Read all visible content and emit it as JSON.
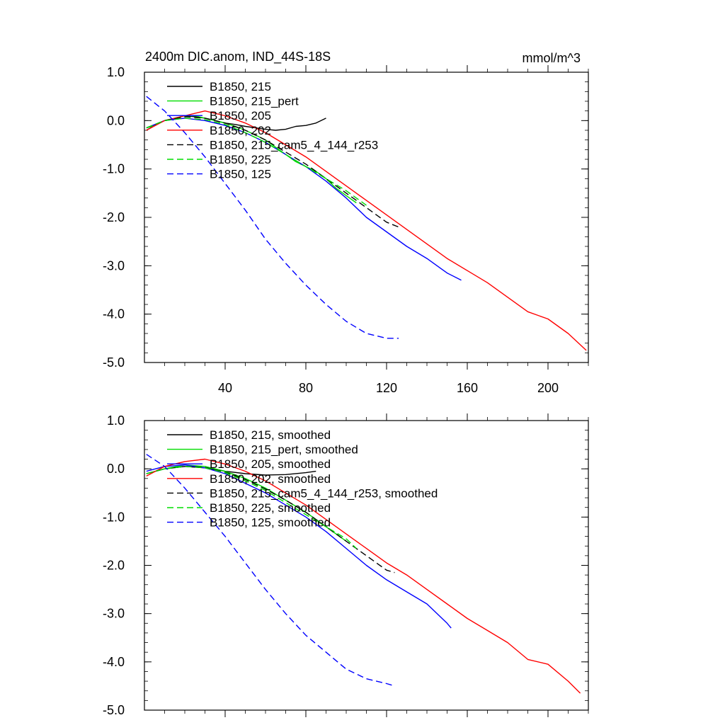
{
  "chart_data": [
    {
      "type": "line",
      "title": "2400m DIC.anom, IND_44S-18S",
      "units": "mmol/m^3",
      "xlim": [
        0,
        220
      ],
      "ylim": [
        -5.0,
        1.0
      ],
      "x_ticks": [
        40,
        80,
        120,
        160,
        200
      ],
      "x_tick_labels": [
        "40",
        "80",
        "120",
        "160",
        "200"
      ],
      "y_ticks": [
        1.0,
        0.0,
        -1.0,
        -2.0,
        -3.0,
        -4.0,
        -5.0
      ],
      "y_tick_labels": [
        "1.0",
        "0.0",
        "-1.0",
        "-2.0",
        "-3.0",
        "-4.0",
        "-5.0"
      ],
      "legend_position": "top-left",
      "series": [
        {
          "name": "B1850, 215",
          "color": "#000000",
          "dash": "solid",
          "x": [
            1,
            5,
            10,
            15,
            20,
            25,
            30,
            35,
            40,
            45,
            50,
            55,
            60,
            65,
            70,
            75,
            80,
            85,
            90
          ],
          "y": [
            -0.2,
            -0.1,
            0.0,
            0.05,
            0.1,
            0.08,
            0.05,
            0.0,
            -0.05,
            -0.08,
            -0.12,
            -0.15,
            -0.18,
            -0.2,
            -0.18,
            -0.12,
            -0.1,
            -0.05,
            0.05
          ]
        },
        {
          "name": "B1850, 215_pert",
          "color": "#00dd00",
          "dash": "solid",
          "x": [
            1,
            5,
            10,
            15,
            20,
            25,
            30,
            35,
            40,
            45,
            50,
            55,
            60,
            65,
            70,
            75,
            80,
            85,
            90,
            95,
            100,
            105
          ],
          "y": [
            -0.15,
            -0.1,
            0.0,
            0.05,
            0.1,
            0.1,
            0.05,
            0.0,
            -0.05,
            -0.12,
            -0.2,
            -0.3,
            -0.4,
            -0.55,
            -0.7,
            -0.85,
            -0.95,
            -1.05,
            -1.2,
            -1.4,
            -1.55,
            -1.7
          ]
        },
        {
          "name": "B1850, 205",
          "color": "#0000ff",
          "dash": "solid",
          "x": [
            1,
            10,
            20,
            30,
            40,
            50,
            60,
            70,
            80,
            90,
            100,
            110,
            120,
            130,
            140,
            150,
            157
          ],
          "y": [
            -0.15,
            0.0,
            0.05,
            0.0,
            -0.1,
            -0.25,
            -0.45,
            -0.7,
            -0.95,
            -1.25,
            -1.6,
            -2.0,
            -2.3,
            -2.6,
            -2.85,
            -3.15,
            -3.3
          ]
        },
        {
          "name": "B1850, 202",
          "color": "#ff0000",
          "dash": "solid",
          "x": [
            1,
            10,
            20,
            30,
            40,
            50,
            60,
            70,
            80,
            90,
            100,
            110,
            120,
            130,
            140,
            150,
            160,
            170,
            180,
            190,
            200,
            210,
            219
          ],
          "y": [
            -0.2,
            0.0,
            0.1,
            0.2,
            0.1,
            -0.05,
            -0.25,
            -0.5,
            -0.75,
            -1.05,
            -1.35,
            -1.65,
            -1.95,
            -2.25,
            -2.55,
            -2.85,
            -3.1,
            -3.35,
            -3.65,
            -3.95,
            -4.1,
            -4.4,
            -4.75
          ]
        },
        {
          "name": "B1850, 215_cam5_4_144_r253",
          "color": "#000000",
          "dash": "dash",
          "x": [
            1,
            10,
            20,
            30,
            40,
            50,
            60,
            70,
            80,
            90,
            100,
            110,
            120,
            126
          ],
          "y": [
            -0.15,
            0.0,
            0.08,
            0.05,
            -0.05,
            -0.2,
            -0.4,
            -0.65,
            -0.9,
            -1.2,
            -1.5,
            -1.8,
            -2.1,
            -2.2
          ]
        },
        {
          "name": "B1850, 225",
          "color": "#00dd00",
          "dash": "dash",
          "x": [
            1,
            10,
            20,
            30,
            40,
            50,
            60,
            70,
            80,
            90,
            100,
            110
          ],
          "y": [
            -0.15,
            0.0,
            0.05,
            0.02,
            -0.08,
            -0.25,
            -0.45,
            -0.7,
            -0.95,
            -1.2,
            -1.45,
            -1.75
          ]
        },
        {
          "name": "B1850, 125",
          "color": "#0000ff",
          "dash": "dash",
          "x": [
            1,
            10,
            20,
            30,
            40,
            50,
            60,
            70,
            80,
            90,
            100,
            110,
            120,
            126
          ],
          "y": [
            0.5,
            0.2,
            -0.25,
            -0.75,
            -1.3,
            -1.85,
            -2.45,
            -2.95,
            -3.4,
            -3.8,
            -4.15,
            -4.4,
            -4.5,
            -4.5
          ]
        }
      ]
    },
    {
      "type": "line",
      "xlim": [
        0,
        220
      ],
      "ylim": [
        -5.0,
        1.0
      ],
      "x_ticks": [
        40,
        80,
        120,
        160,
        200
      ],
      "y_ticks": [
        1.0,
        0.0,
        -1.0,
        -2.0,
        -3.0,
        -4.0,
        -5.0
      ],
      "y_tick_labels": [
        "1.0",
        "0.0",
        "-1.0",
        "-2.0",
        "-3.0",
        "-4.0",
        "-5.0"
      ],
      "legend_position": "top-left",
      "series": [
        {
          "name": "B1850, 215, smoothed",
          "color": "#000000",
          "dash": "solid",
          "x": [
            1,
            10,
            20,
            30,
            40,
            50,
            60,
            70,
            80,
            85
          ],
          "y": [
            -0.1,
            0.0,
            0.05,
            0.02,
            -0.05,
            -0.1,
            -0.13,
            -0.12,
            -0.08,
            -0.05
          ]
        },
        {
          "name": "B1850, 215_pert, smoothed",
          "color": "#00dd00",
          "dash": "solid",
          "x": [
            1,
            10,
            20,
            30,
            40,
            50,
            60,
            70,
            80,
            90,
            100
          ],
          "y": [
            -0.1,
            0.0,
            0.08,
            0.05,
            -0.05,
            -0.2,
            -0.4,
            -0.65,
            -0.9,
            -1.2,
            -1.5
          ]
        },
        {
          "name": "B1850, 205, smoothed",
          "color": "#0000ff",
          "dash": "solid",
          "x": [
            1,
            10,
            20,
            30,
            40,
            50,
            60,
            70,
            80,
            90,
            100,
            110,
            120,
            130,
            140,
            150,
            152
          ],
          "y": [
            -0.05,
            0.05,
            0.08,
            0.02,
            -0.1,
            -0.3,
            -0.5,
            -0.75,
            -1.0,
            -1.3,
            -1.65,
            -2.0,
            -2.3,
            -2.55,
            -2.8,
            -3.2,
            -3.3
          ]
        },
        {
          "name": "B1850, 202, smoothed",
          "color": "#ff0000",
          "dash": "solid",
          "x": [
            1,
            10,
            20,
            30,
            40,
            50,
            60,
            70,
            80,
            90,
            100,
            110,
            120,
            130,
            140,
            150,
            160,
            170,
            180,
            190,
            200,
            210,
            216
          ],
          "y": [
            -0.15,
            0.05,
            0.15,
            0.2,
            0.1,
            -0.05,
            -0.25,
            -0.5,
            -0.75,
            -1.05,
            -1.35,
            -1.65,
            -1.95,
            -2.2,
            -2.5,
            -2.8,
            -3.1,
            -3.35,
            -3.6,
            -3.95,
            -4.05,
            -4.4,
            -4.65
          ]
        },
        {
          "name": "B1850, 215_cam5_4_144_r253, smoothed",
          "color": "#000000",
          "dash": "dash",
          "x": [
            1,
            10,
            20,
            30,
            40,
            50,
            60,
            70,
            80,
            90,
            100,
            110,
            120,
            124
          ],
          "y": [
            -0.1,
            0.0,
            0.05,
            0.03,
            -0.07,
            -0.22,
            -0.42,
            -0.65,
            -0.9,
            -1.2,
            -1.5,
            -1.8,
            -2.1,
            -2.15
          ]
        },
        {
          "name": "B1850, 225, smoothed",
          "color": "#00dd00",
          "dash": "dash",
          "x": [
            1,
            10,
            20,
            30,
            40,
            50,
            60,
            70,
            80,
            90,
            100,
            105
          ],
          "y": [
            -0.1,
            0.0,
            0.05,
            0.02,
            -0.08,
            -0.25,
            -0.45,
            -0.7,
            -0.95,
            -1.2,
            -1.45,
            -1.65
          ]
        },
        {
          "name": "B1850, 125, smoothed",
          "color": "#0000ff",
          "dash": "dash",
          "x": [
            1,
            10,
            20,
            30,
            40,
            50,
            60,
            70,
            80,
            90,
            100,
            110,
            120,
            124
          ],
          "y": [
            0.3,
            0.05,
            -0.4,
            -0.9,
            -1.4,
            -1.95,
            -2.5,
            -3.0,
            -3.45,
            -3.8,
            -4.15,
            -4.35,
            -4.45,
            -4.5
          ]
        }
      ]
    }
  ]
}
